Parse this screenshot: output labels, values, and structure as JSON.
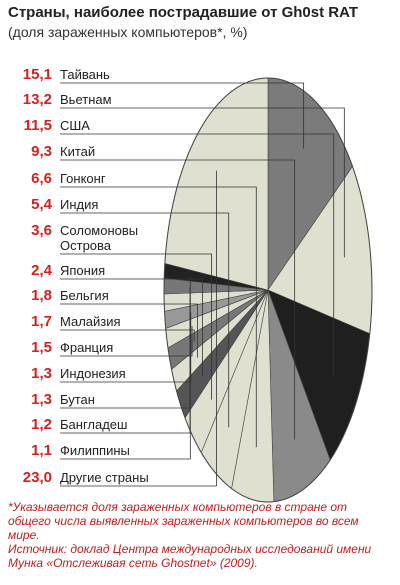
{
  "chart_data": {
    "type": "pie",
    "title": "Страны, наиболее пострадавшие от Gh0st RAT",
    "subtitle": "(доля зараженных компьютеров*, %)",
    "categories": [
      "Тайвань",
      "Вьетнам",
      "США",
      "Китай",
      "Гонконг",
      "Индия",
      "Соломоновы Острова",
      "Япония",
      "Бельгия",
      "Малайзия",
      "Франция",
      "Индонезия",
      "Бутан",
      "Бангладеш",
      "Филиппины",
      "Другие страны"
    ],
    "values": [
      15.1,
      13.2,
      11.5,
      9.3,
      6.6,
      5.4,
      3.6,
      2.4,
      1.8,
      1.7,
      1.5,
      1.3,
      1.3,
      1.2,
      1.1,
      23.0
    ],
    "value_labels": [
      "15,1",
      "13,2",
      "11,5",
      "9,3",
      "6,6",
      "5,4",
      "3,6",
      "2,4",
      "1,8",
      "1,7",
      "1,5",
      "1,3",
      "1,3",
      "1,2",
      "1,1",
      "23,0"
    ],
    "colors": [
      "#7b7b7b",
      "#dfe0cf",
      "#1f1f1f",
      "#8a8a8a",
      "#dfe0cf",
      "#dfe0cf",
      "#dfe0cf",
      "#555555",
      "#dfe0cf",
      "#777777",
      "#dfe0cf",
      "#999999",
      "#dfe0cf",
      "#777777",
      "#222222",
      "#dfe0cf"
    ],
    "footnote": "*Указывается доля зараженных компьютеров в стране от общего числа выявленных зараженных компьютеров во всем мире.",
    "source": "Источник: доклад Центра международных исследований имени Мунка «Отслеживая сеть Ghostnet» (2009)."
  }
}
